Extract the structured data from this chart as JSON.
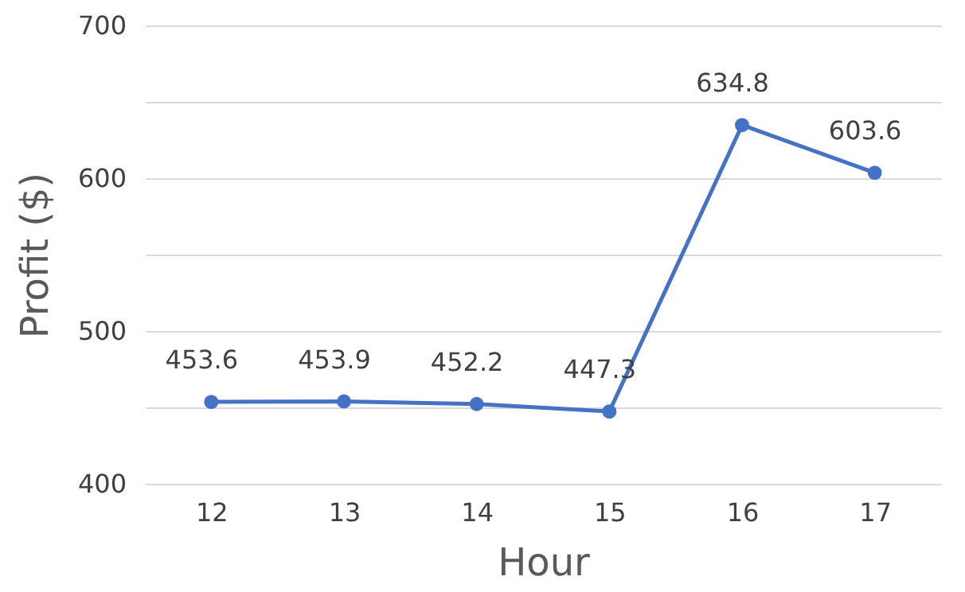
{
  "chart_data": {
    "type": "line",
    "xlabel": "Hour",
    "ylabel": "Profit ($)",
    "categories": [
      "12",
      "13",
      "14",
      "15",
      "16",
      "17"
    ],
    "series": [
      {
        "color": "#4472c4",
        "values": [
          453.6,
          453.9,
          452.2,
          447.3,
          634.8,
          603.6
        ]
      }
    ],
    "ylim": [
      400,
      700
    ],
    "yticks": [
      400,
      {
        "value": 450,
        "label": null
      },
      500,
      {
        "value": 550,
        "label": null
      },
      600,
      {
        "value": 650,
        "label": null
      },
      700
    ],
    "grid": "y",
    "marker": "circle",
    "data_labels": true
  }
}
